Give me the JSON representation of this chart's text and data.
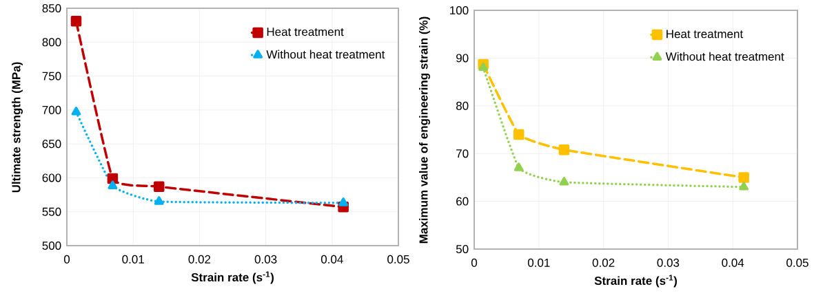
{
  "chart_data": [
    {
      "type": "line",
      "xlabel": "Strain rate (s$^{-1}$)",
      "ylabel": "Ultimate strength (MPa)",
      "x": [
        0.0014,
        0.0069,
        0.0139,
        0.0417
      ],
      "series": [
        {
          "name": "Heat treatment",
          "color": "#c00000",
          "marker": "square",
          "line_style": "dashed",
          "values": [
            831,
            599,
            587,
            557
          ]
        },
        {
          "name": "Without heat treatment",
          "color": "#00b0f0",
          "marker": "triangle",
          "line_style": "dotted",
          "values": [
            697,
            588,
            565,
            563
          ]
        }
      ],
      "xlim": [
        0,
        0.05
      ],
      "xticks": [
        0,
        0.01,
        0.02,
        0.03,
        0.04,
        0.05
      ],
      "ylim": [
        500,
        850
      ],
      "yticks": [
        500,
        550,
        600,
        650,
        700,
        750,
        800,
        850
      ],
      "grid": true,
      "legend": "top right"
    },
    {
      "type": "line",
      "xlabel": "Strain rate (s$^{-1}$)",
      "ylabel": "Maximum value of engineering strain (%)",
      "x": [
        0.0014,
        0.0069,
        0.0139,
        0.0417
      ],
      "series": [
        {
          "name": "Heat treatment",
          "color": "#ffc000",
          "marker": "square",
          "line_style": "dashed",
          "values": [
            88.7,
            74,
            70.8,
            65
          ]
        },
        {
          "name": "Without heat treatment",
          "color": "#92d050",
          "marker": "triangle",
          "line_style": "dotted",
          "values": [
            88,
            67,
            64,
            63
          ]
        }
      ],
      "xlim": [
        0,
        0.05
      ],
      "xticks": [
        0,
        0.01,
        0.02,
        0.03,
        0.04,
        0.05
      ],
      "ylim": [
        50,
        100
      ],
      "yticks": [
        50,
        60,
        70,
        80,
        90,
        100
      ],
      "grid": true,
      "legend": "top right"
    }
  ]
}
